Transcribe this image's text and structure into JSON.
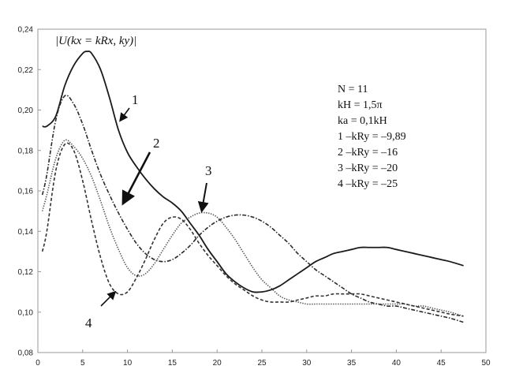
{
  "chart_data": {
    "type": "line",
    "ylabel": "|U(kx = kRx, ky)|",
    "xlim": [
      0,
      50
    ],
    "ylim": [
      0.08,
      0.24
    ],
    "x_ticks": [
      "0",
      "5",
      "10",
      "15",
      "20",
      "25",
      "30",
      "35",
      "40",
      "45",
      "50"
    ],
    "y_ticks": [
      "0,08",
      "0,10",
      "0,12",
      "0,14",
      "0,16",
      "0,18",
      "0,20",
      "0,22",
      "0,24"
    ],
    "grid": false,
    "legend_lines": [
      "N = 11",
      "kH = 1,5π",
      "ka = 0,1kH",
      "1 –kRy = –9,89",
      "2 –kRy = –16",
      "3 –kRy = –20",
      "4 –kRy = –25"
    ],
    "series": [
      {
        "name": "1",
        "style": "solid",
        "x": [
          0.5,
          1,
          2,
          3,
          4,
          5,
          5.5,
          6,
          7,
          8,
          9,
          10,
          11,
          12,
          13,
          14,
          15,
          16,
          17,
          18,
          19,
          20,
          21,
          22,
          23,
          24,
          25,
          26,
          27,
          28,
          29,
          30,
          31,
          32,
          33,
          34,
          35,
          36,
          37,
          38,
          39,
          40,
          41,
          42,
          43,
          44,
          45,
          46,
          47.5
        ],
        "y": [
          0.192,
          0.192,
          0.197,
          0.212,
          0.222,
          0.228,
          0.229,
          0.228,
          0.22,
          0.206,
          0.19,
          0.179,
          0.172,
          0.166,
          0.161,
          0.157,
          0.154,
          0.15,
          0.144,
          0.138,
          0.131,
          0.125,
          0.119,
          0.115,
          0.112,
          0.11,
          0.11,
          0.111,
          0.113,
          0.116,
          0.119,
          0.122,
          0.125,
          0.127,
          0.129,
          0.13,
          0.131,
          0.132,
          0.132,
          0.132,
          0.132,
          0.131,
          0.13,
          0.129,
          0.128,
          0.127,
          0.126,
          0.125,
          0.123
        ]
      },
      {
        "name": "2",
        "style": "dashdot",
        "x": [
          0.5,
          1,
          2,
          3,
          4,
          5,
          6,
          7,
          8,
          9,
          10,
          11,
          12,
          13,
          14,
          15,
          16,
          17,
          18,
          19,
          20,
          21,
          22,
          23,
          24,
          25,
          26,
          27,
          28,
          29,
          30,
          31,
          32,
          33,
          34,
          35,
          36,
          37,
          38,
          39,
          40,
          41,
          42,
          43,
          44,
          45,
          46,
          47.5
        ],
        "y": [
          0.158,
          0.168,
          0.195,
          0.207,
          0.203,
          0.193,
          0.18,
          0.168,
          0.158,
          0.149,
          0.141,
          0.134,
          0.129,
          0.126,
          0.125,
          0.126,
          0.129,
          0.133,
          0.138,
          0.142,
          0.145,
          0.147,
          0.148,
          0.148,
          0.147,
          0.145,
          0.142,
          0.138,
          0.134,
          0.129,
          0.125,
          0.121,
          0.118,
          0.115,
          0.112,
          0.109,
          0.107,
          0.105,
          0.104,
          0.103,
          0.103,
          0.102,
          0.101,
          0.1,
          0.099,
          0.098,
          0.097,
          0.095
        ]
      },
      {
        "name": "3",
        "style": "dotted",
        "x": [
          0.5,
          1,
          2,
          3,
          4,
          5,
          6,
          7,
          8,
          9,
          10,
          11,
          12,
          13,
          14,
          15,
          16,
          17,
          18,
          19,
          20,
          21,
          22,
          23,
          24,
          25,
          26,
          27,
          28,
          29,
          30,
          31,
          32,
          33,
          34,
          35,
          36,
          37,
          38,
          39,
          40,
          41,
          42,
          43,
          44,
          45,
          46,
          47.5
        ],
        "y": [
          0.15,
          0.158,
          0.176,
          0.185,
          0.182,
          0.176,
          0.167,
          0.155,
          0.142,
          0.131,
          0.122,
          0.118,
          0.119,
          0.124,
          0.131,
          0.138,
          0.144,
          0.147,
          0.149,
          0.149,
          0.147,
          0.142,
          0.136,
          0.129,
          0.122,
          0.116,
          0.112,
          0.108,
          0.106,
          0.105,
          0.104,
          0.104,
          0.104,
          0.104,
          0.104,
          0.104,
          0.104,
          0.104,
          0.104,
          0.104,
          0.104,
          0.104,
          0.103,
          0.103,
          0.102,
          0.101,
          0.1,
          0.098
        ]
      },
      {
        "name": "4",
        "style": "dashed",
        "x": [
          0.5,
          1,
          2,
          3,
          4,
          5,
          6,
          7,
          8,
          9,
          10,
          11,
          12,
          13,
          14,
          15,
          16,
          17,
          18,
          19,
          20,
          21,
          22,
          23,
          24,
          25,
          26,
          27,
          28,
          29,
          30,
          31,
          32,
          33,
          34,
          35,
          36,
          37,
          38,
          39,
          40,
          41,
          42,
          43,
          44,
          45,
          46,
          47.5
        ],
        "y": [
          0.13,
          0.14,
          0.17,
          0.183,
          0.18,
          0.165,
          0.145,
          0.127,
          0.114,
          0.109,
          0.11,
          0.117,
          0.126,
          0.136,
          0.144,
          0.147,
          0.146,
          0.141,
          0.134,
          0.128,
          0.123,
          0.118,
          0.114,
          0.111,
          0.108,
          0.106,
          0.105,
          0.105,
          0.105,
          0.106,
          0.107,
          0.108,
          0.108,
          0.109,
          0.109,
          0.109,
          0.109,
          0.108,
          0.107,
          0.106,
          0.105,
          0.104,
          0.103,
          0.102,
          0.101,
          0.1,
          0.099,
          0.098
        ]
      }
    ]
  }
}
